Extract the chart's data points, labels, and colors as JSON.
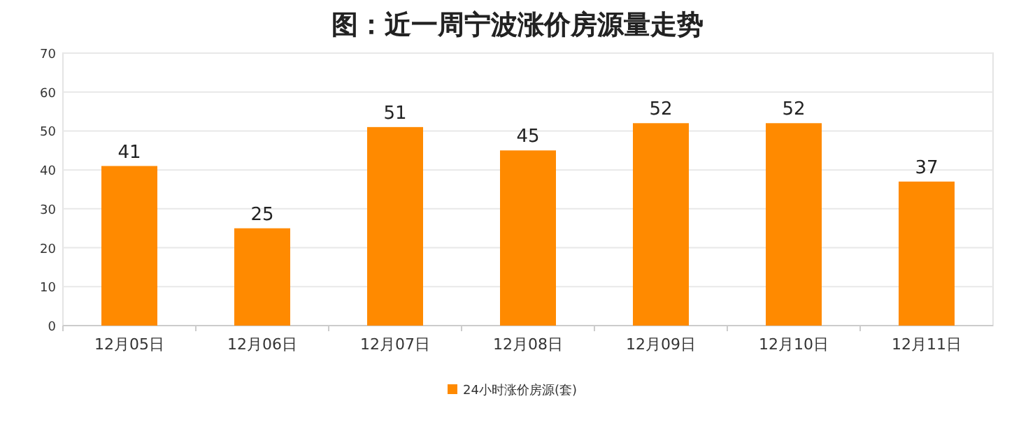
{
  "chart_data": {
    "type": "bar",
    "title": "图：近一周宁波涨价房源量走势",
    "categories": [
      "12月05日",
      "12月06日",
      "12月07日",
      "12月08日",
      "12月09日",
      "12月10日",
      "12月11日"
    ],
    "series": [
      {
        "name": "24小时涨价房源(套)",
        "color": "#ff8a00",
        "values": [
          41,
          25,
          51,
          45,
          52,
          52,
          37
        ]
      }
    ],
    "ylim": [
      0,
      70
    ],
    "yticks": [
      0,
      10,
      20,
      30,
      40,
      50,
      60,
      70
    ],
    "grid": "y",
    "legend": "bottom",
    "data_labels": true
  }
}
